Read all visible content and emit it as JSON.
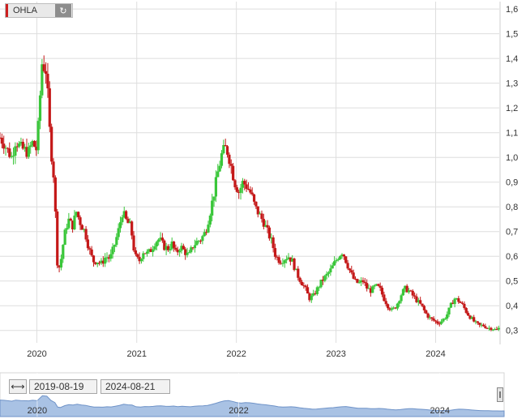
{
  "symbol": {
    "name": "OHLA",
    "refresh_icon": "refresh-icon"
  },
  "range_selector": {
    "from": "2019-08-19",
    "to": "2024-08-21",
    "range_icon": "horizontal-arrows-icon"
  },
  "navigator": {
    "year_labels": [
      "2020",
      "2022",
      "2024"
    ]
  },
  "colors": {
    "up": "#39c639",
    "down": "#c41818",
    "grid": "#dedede",
    "navigator_fill": "#a9c2e4",
    "navigator_line": "#6f93c8"
  },
  "chart_data": {
    "type": "candlestick",
    "title": "",
    "x_tick_labels": [
      "2020",
      "2021",
      "2022",
      "2023",
      "2024"
    ],
    "y_tick_labels": [
      "0,3",
      "0,4",
      "0,5",
      "0,6",
      "0,7",
      "0,8",
      "0,9",
      "1,0",
      "1,1",
      "1,2",
      "1,3",
      "1,4",
      "1,5",
      "1,6"
    ],
    "ylim": [
      0.25,
      1.63
    ],
    "xlim": [
      "2019-08-19",
      "2024-08-21"
    ],
    "grid": true,
    "y_axis_position": "right",
    "series": [
      {
        "name": "",
        "approximate_close_path": [
          [
            "2019-08-19",
            1.08
          ],
          [
            "2019-09-01",
            1.06
          ],
          [
            "2019-09-15",
            1.03
          ],
          [
            "2019-10-01",
            1.0
          ],
          [
            "2019-10-15",
            1.07
          ],
          [
            "2019-11-01",
            1.04
          ],
          [
            "2019-11-15",
            1.03
          ],
          [
            "2019-12-01",
            1.02
          ],
          [
            "2019-12-15",
            1.06
          ],
          [
            "2020-01-01",
            1.03
          ],
          [
            "2020-01-20",
            1.38
          ],
          [
            "2020-02-05",
            1.35
          ],
          [
            "2020-02-20",
            1.05
          ],
          [
            "2020-03-05",
            0.9
          ],
          [
            "2020-03-15",
            0.58
          ],
          [
            "2020-03-25",
            0.55
          ],
          [
            "2020-04-10",
            0.68
          ],
          [
            "2020-04-25",
            0.75
          ],
          [
            "2020-05-10",
            0.72
          ],
          [
            "2020-05-25",
            0.78
          ],
          [
            "2020-06-10",
            0.73
          ],
          [
            "2020-06-25",
            0.7
          ],
          [
            "2020-07-10",
            0.63
          ],
          [
            "2020-07-25",
            0.58
          ],
          [
            "2020-08-10",
            0.58
          ],
          [
            "2020-08-25",
            0.57
          ],
          [
            "2020-09-10",
            0.6
          ],
          [
            "2020-09-25",
            0.59
          ],
          [
            "2020-10-10",
            0.64
          ],
          [
            "2020-10-25",
            0.7
          ],
          [
            "2020-11-10",
            0.78
          ],
          [
            "2020-11-25",
            0.74
          ],
          [
            "2020-12-10",
            0.72
          ],
          [
            "2020-12-25",
            0.6
          ],
          [
            "2021-01-10",
            0.58
          ],
          [
            "2021-01-25",
            0.62
          ],
          [
            "2021-02-10",
            0.61
          ],
          [
            "2021-02-25",
            0.63
          ],
          [
            "2021-03-10",
            0.66
          ],
          [
            "2021-03-25",
            0.67
          ],
          [
            "2021-04-10",
            0.64
          ],
          [
            "2021-04-25",
            0.63
          ],
          [
            "2021-05-10",
            0.65
          ],
          [
            "2021-05-25",
            0.61
          ],
          [
            "2021-06-10",
            0.64
          ],
          [
            "2021-06-25",
            0.62
          ],
          [
            "2021-07-10",
            0.6
          ],
          [
            "2021-07-25",
            0.64
          ],
          [
            "2021-08-10",
            0.66
          ],
          [
            "2021-08-25",
            0.67
          ],
          [
            "2021-09-10",
            0.7
          ],
          [
            "2021-09-25",
            0.77
          ],
          [
            "2021-10-10",
            0.85
          ],
          [
            "2021-10-25",
            0.94
          ],
          [
            "2021-11-10",
            1.02
          ],
          [
            "2021-11-25",
            1.04
          ],
          [
            "2021-12-10",
            0.98
          ],
          [
            "2021-12-25",
            0.9
          ],
          [
            "2022-01-10",
            0.86
          ],
          [
            "2022-01-25",
            0.9
          ],
          [
            "2022-02-10",
            0.88
          ],
          [
            "2022-02-25",
            0.85
          ],
          [
            "2022-03-10",
            0.8
          ],
          [
            "2022-03-25",
            0.77
          ],
          [
            "2022-04-10",
            0.74
          ],
          [
            "2022-04-25",
            0.7
          ],
          [
            "2022-05-10",
            0.66
          ],
          [
            "2022-05-25",
            0.6
          ],
          [
            "2022-06-10",
            0.58
          ],
          [
            "2022-06-25",
            0.59
          ],
          [
            "2022-07-10",
            0.6
          ],
          [
            "2022-07-25",
            0.58
          ],
          [
            "2022-08-10",
            0.53
          ],
          [
            "2022-08-25",
            0.5
          ],
          [
            "2022-09-10",
            0.47
          ],
          [
            "2022-09-25",
            0.43
          ],
          [
            "2022-10-10",
            0.44
          ],
          [
            "2022-10-25",
            0.47
          ],
          [
            "2022-11-10",
            0.5
          ],
          [
            "2022-11-25",
            0.52
          ],
          [
            "2022-12-10",
            0.54
          ],
          [
            "2022-12-25",
            0.57
          ],
          [
            "2023-01-10",
            0.6
          ],
          [
            "2023-01-25",
            0.62
          ],
          [
            "2023-02-10",
            0.57
          ],
          [
            "2023-02-25",
            0.53
          ],
          [
            "2023-03-10",
            0.5
          ],
          [
            "2023-03-25",
            0.49
          ],
          [
            "2023-04-10",
            0.5
          ],
          [
            "2023-04-25",
            0.47
          ],
          [
            "2023-05-10",
            0.46
          ],
          [
            "2023-05-25",
            0.48
          ],
          [
            "2023-06-10",
            0.47
          ],
          [
            "2023-06-25",
            0.43
          ],
          [
            "2023-07-10",
            0.4
          ],
          [
            "2023-07-25",
            0.38
          ],
          [
            "2023-08-10",
            0.4
          ],
          [
            "2023-08-25",
            0.44
          ],
          [
            "2023-09-10",
            0.47
          ],
          [
            "2023-09-25",
            0.46
          ],
          [
            "2023-10-10",
            0.44
          ],
          [
            "2023-10-25",
            0.42
          ],
          [
            "2023-11-10",
            0.4
          ],
          [
            "2023-11-25",
            0.37
          ],
          [
            "2023-12-10",
            0.35
          ],
          [
            "2023-12-25",
            0.34
          ],
          [
            "2024-01-10",
            0.33
          ],
          [
            "2024-01-25",
            0.34
          ],
          [
            "2024-02-10",
            0.36
          ],
          [
            "2024-02-25",
            0.4
          ],
          [
            "2024-03-10",
            0.43
          ],
          [
            "2024-03-25",
            0.42
          ],
          [
            "2024-04-10",
            0.4
          ],
          [
            "2024-04-25",
            0.37
          ],
          [
            "2024-05-10",
            0.35
          ],
          [
            "2024-05-25",
            0.33
          ],
          [
            "2024-06-10",
            0.32
          ],
          [
            "2024-06-25",
            0.32
          ],
          [
            "2024-07-10",
            0.31
          ],
          [
            "2024-07-25",
            0.31
          ],
          [
            "2024-08-10",
            0.3
          ],
          [
            "2024-08-21",
            0.31
          ]
        ]
      }
    ]
  }
}
